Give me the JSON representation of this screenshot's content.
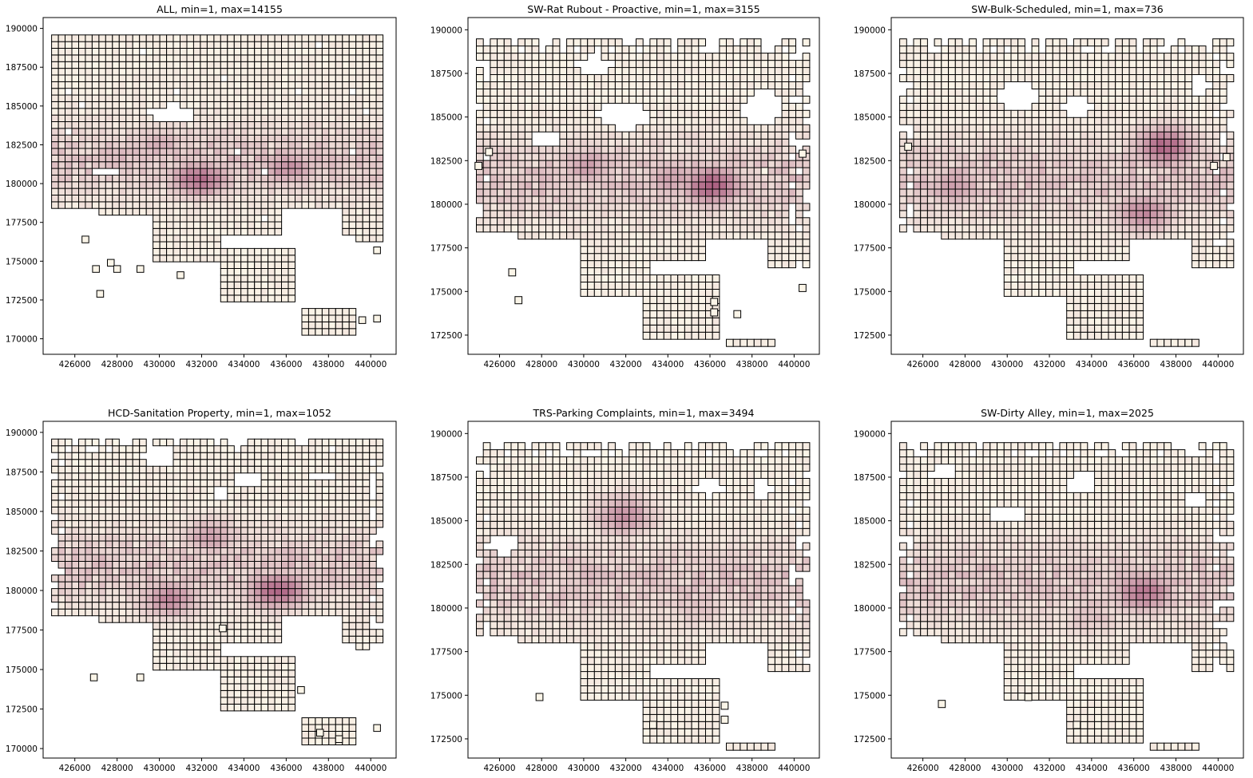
{
  "colors": {
    "low": "#fbf5e8",
    "high": "#a14b73",
    "edge": "#000000",
    "background": "#ffffff"
  },
  "chart_data": [
    {
      "type": "heatmap",
      "title": "ALL, min=1, max=14155",
      "min": 1,
      "max": 14155,
      "xlim": [
        424500,
        441200
      ],
      "ylim": [
        169000,
        190700
      ],
      "xticks": [
        426000,
        428000,
        430000,
        432000,
        434000,
        436000,
        438000,
        440000
      ],
      "yticks": [
        170000,
        172500,
        175000,
        177500,
        180000,
        182500,
        185000,
        187500,
        190000
      ],
      "cell_size": [
        320,
        430
      ],
      "pattern": "all",
      "hotspots": [
        {
          "x": 431900,
          "y": 180300,
          "v": 0.75
        },
        {
          "x": 436100,
          "y": 181000,
          "v": 0.55
        },
        {
          "x": 430000,
          "y": 182500,
          "v": 0.35
        }
      ]
    },
    {
      "type": "heatmap",
      "title": "SW-Rat Rubout - Proactive, min=1, max=3155",
      "min": 1,
      "max": 3155,
      "xlim": [
        424500,
        441200
      ],
      "ylim": [
        171400,
        190700
      ],
      "xticks": [
        426000,
        428000,
        430000,
        432000,
        434000,
        436000,
        438000,
        440000
      ],
      "yticks": [
        172500,
        175000,
        177500,
        180000,
        182500,
        185000,
        187500,
        190000
      ],
      "cell_size": [
        330,
        410
      ],
      "pattern": "rat",
      "hotspots": [
        {
          "x": 436100,
          "y": 181100,
          "v": 0.85
        },
        {
          "x": 430200,
          "y": 182200,
          "v": 0.45
        },
        {
          "x": 434200,
          "y": 181500,
          "v": 0.45
        }
      ]
    },
    {
      "type": "heatmap",
      "title": "SW-Bulk-Scheduled, min=1, max=736",
      "min": 1,
      "max": 736,
      "xlim": [
        424500,
        441200
      ],
      "ylim": [
        171400,
        190700
      ],
      "xticks": [
        426000,
        428000,
        430000,
        432000,
        434000,
        436000,
        438000,
        440000
      ],
      "yticks": [
        172500,
        175000,
        177500,
        180000,
        182500,
        185000,
        187500,
        190000
      ],
      "cell_size": [
        330,
        410
      ],
      "pattern": "bulk",
      "hotspots": [
        {
          "x": 437500,
          "y": 183300,
          "v": 0.8
        },
        {
          "x": 436500,
          "y": 179500,
          "v": 0.6
        },
        {
          "x": 427500,
          "y": 181000,
          "v": 0.45
        }
      ]
    },
    {
      "type": "heatmap",
      "title": "HCD-Sanitation Property, min=1, max=1052",
      "min": 1,
      "max": 1052,
      "xlim": [
        424500,
        441200
      ],
      "ylim": [
        169400,
        190700
      ],
      "xticks": [
        426000,
        428000,
        430000,
        432000,
        434000,
        436000,
        438000,
        440000
      ],
      "yticks": [
        170000,
        172500,
        175000,
        177500,
        180000,
        182500,
        185000,
        187500,
        190000
      ],
      "cell_size": [
        320,
        430
      ],
      "pattern": "hcd",
      "hotspots": [
        {
          "x": 435600,
          "y": 180000,
          "v": 0.8
        },
        {
          "x": 430500,
          "y": 179500,
          "v": 0.6
        },
        {
          "x": 432400,
          "y": 183400,
          "v": 0.45
        }
      ]
    },
    {
      "type": "heatmap",
      "title": "TRS-Parking Complaints, min=1, max=3494",
      "min": 1,
      "max": 3494,
      "xlim": [
        424500,
        441200
      ],
      "ylim": [
        171400,
        190700
      ],
      "xticks": [
        426000,
        428000,
        430000,
        432000,
        434000,
        436000,
        438000,
        440000
      ],
      "yticks": [
        172500,
        175000,
        177500,
        180000,
        182500,
        185000,
        187500,
        190000
      ],
      "cell_size": [
        330,
        410
      ],
      "pattern": "trs",
      "hotspots": [
        {
          "x": 431900,
          "y": 185300,
          "v": 0.55
        },
        {
          "x": 435600,
          "y": 180000,
          "v": 0.25
        }
      ]
    },
    {
      "type": "heatmap",
      "title": "SW-Dirty Alley, min=1, max=2025",
      "min": 1,
      "max": 2025,
      "xlim": [
        424500,
        441200
      ],
      "ylim": [
        171400,
        190700
      ],
      "xticks": [
        426000,
        428000,
        430000,
        432000,
        434000,
        436000,
        438000,
        440000
      ],
      "yticks": [
        172500,
        175000,
        177500,
        180000,
        182500,
        185000,
        187500,
        190000
      ],
      "cell_size": [
        330,
        410
      ],
      "pattern": "alley",
      "hotspots": [
        {
          "x": 436500,
          "y": 180900,
          "v": 0.7
        },
        {
          "x": 434000,
          "y": 179500,
          "v": 0.25
        }
      ]
    }
  ]
}
